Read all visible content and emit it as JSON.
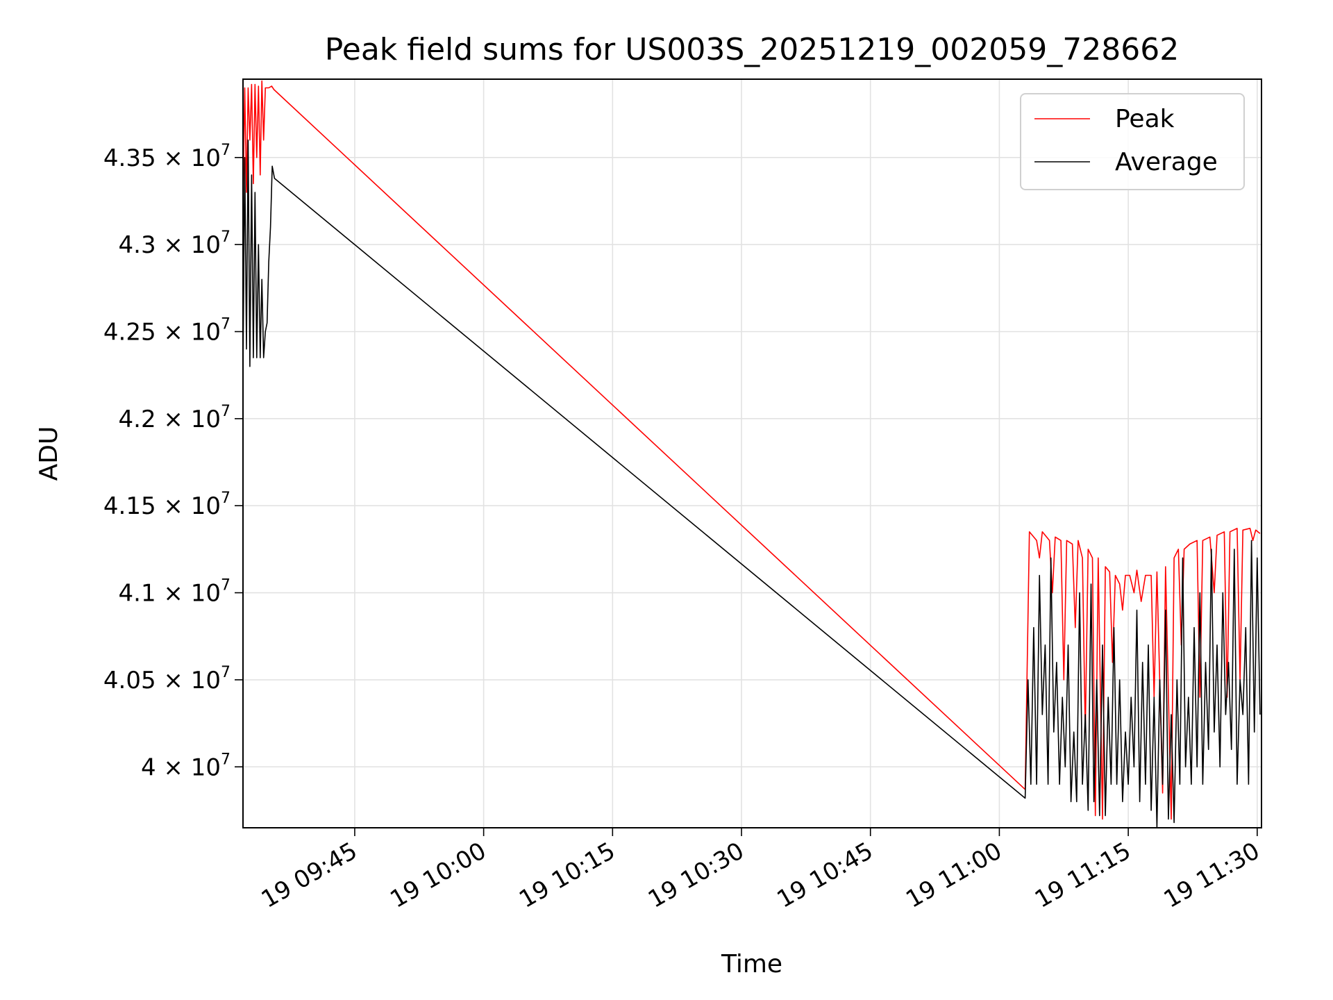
{
  "chart_data": {
    "type": "line",
    "title": "Peak field sums for US003S_20251219_002059_728662",
    "xlabel": "Time",
    "ylabel": "ADU",
    "xlim": [
      "2025-12-19T09:32:00",
      "2025-12-19T11:30:30"
    ],
    "ylim": [
      39650000,
      43950000
    ],
    "grid": true,
    "legend_position": "top-right",
    "x_ticks": [
      {
        "value": "2025-12-19T09:45:00",
        "label": "19 09:45"
      },
      {
        "value": "2025-12-19T10:00:00",
        "label": "19 10:00"
      },
      {
        "value": "2025-12-19T10:15:00",
        "label": "19 10:15"
      },
      {
        "value": "2025-12-19T10:30:00",
        "label": "19 10:30"
      },
      {
        "value": "2025-12-19T10:45:00",
        "label": "19 10:45"
      },
      {
        "value": "2025-12-19T11:00:00",
        "label": "19 11:00"
      },
      {
        "value": "2025-12-19T11:15:00",
        "label": "19 11:15"
      },
      {
        "value": "2025-12-19T11:30:00",
        "label": "19 11:30"
      }
    ],
    "y_ticks": [
      {
        "value": 40000000,
        "mantissa": "4",
        "exp": "7"
      },
      {
        "value": 40500000,
        "mantissa": "4.05",
        "exp": "7"
      },
      {
        "value": 41000000,
        "mantissa": "4.1",
        "exp": "7"
      },
      {
        "value": 41500000,
        "mantissa": "4.15",
        "exp": "7"
      },
      {
        "value": 42000000,
        "mantissa": "4.2",
        "exp": "7"
      },
      {
        "value": 42500000,
        "mantissa": "4.25",
        "exp": "7"
      },
      {
        "value": 43000000,
        "mantissa": "4.3",
        "exp": "7"
      },
      {
        "value": 43500000,
        "mantissa": "4.35",
        "exp": "7"
      }
    ],
    "series": [
      {
        "name": "Peak",
        "color": "#ff0000",
        "points": [
          [
            "2025-12-19T09:32:00",
            43250000
          ],
          [
            "2025-12-19T09:32:12",
            43900000
          ],
          [
            "2025-12-19T09:32:24",
            43300000
          ],
          [
            "2025-12-19T09:32:36",
            43900000
          ],
          [
            "2025-12-19T09:32:48",
            43600000
          ],
          [
            "2025-12-19T09:33:00",
            43920000
          ],
          [
            "2025-12-19T09:33:12",
            43350000
          ],
          [
            "2025-12-19T09:33:24",
            43920000
          ],
          [
            "2025-12-19T09:33:36",
            43500000
          ],
          [
            "2025-12-19T09:33:48",
            43910000
          ],
          [
            "2025-12-19T09:34:00",
            43400000
          ],
          [
            "2025-12-19T09:34:12",
            43940000
          ],
          [
            "2025-12-19T09:34:24",
            43600000
          ],
          [
            "2025-12-19T09:34:36",
            43900000
          ],
          [
            "2025-12-19T09:35:00",
            43900000
          ],
          [
            "2025-12-19T09:35:20",
            43910000
          ],
          [
            "2025-12-19T09:35:36",
            43890000
          ],
          [
            "2025-12-19T11:03:00",
            39870000
          ],
          [
            "2025-12-19T11:03:30",
            41350000
          ],
          [
            "2025-12-19T11:04:20",
            41300000
          ],
          [
            "2025-12-19T11:04:40",
            41200000
          ],
          [
            "2025-12-19T11:05:00",
            41350000
          ],
          [
            "2025-12-19T11:05:50",
            41300000
          ],
          [
            "2025-12-19T11:06:10",
            41000000
          ],
          [
            "2025-12-19T11:06:30",
            41320000
          ],
          [
            "2025-12-19T11:07:10",
            41300000
          ],
          [
            "2025-12-19T11:07:30",
            40500000
          ],
          [
            "2025-12-19T11:07:50",
            41300000
          ],
          [
            "2025-12-19T11:08:30",
            41280000
          ],
          [
            "2025-12-19T11:08:50",
            40800000
          ],
          [
            "2025-12-19T11:09:10",
            41300000
          ],
          [
            "2025-12-19T11:09:40",
            41200000
          ],
          [
            "2025-12-19T11:10:00",
            40200000
          ],
          [
            "2025-12-19T11:10:20",
            41250000
          ],
          [
            "2025-12-19T11:10:50",
            41200000
          ],
          [
            "2025-12-19T11:11:10",
            39720000
          ],
          [
            "2025-12-19T11:11:30",
            41200000
          ],
          [
            "2025-12-19T11:12:00",
            39700000
          ],
          [
            "2025-12-19T11:12:20",
            41150000
          ],
          [
            "2025-12-19T11:12:50",
            41120000
          ],
          [
            "2025-12-19T11:13:10",
            40600000
          ],
          [
            "2025-12-19T11:13:30",
            41100000
          ],
          [
            "2025-12-19T11:14:00",
            41050000
          ],
          [
            "2025-12-19T11:14:20",
            40900000
          ],
          [
            "2025-12-19T11:14:40",
            41100000
          ],
          [
            "2025-12-19T11:15:10",
            41100000
          ],
          [
            "2025-12-19T11:15:40",
            41000000
          ],
          [
            "2025-12-19T11:16:00",
            41130000
          ],
          [
            "2025-12-19T11:16:30",
            40950000
          ],
          [
            "2025-12-19T11:17:00",
            41100000
          ],
          [
            "2025-12-19T11:17:40",
            41100000
          ],
          [
            "2025-12-19T11:18:00",
            40400000
          ],
          [
            "2025-12-19T11:18:20",
            41120000
          ],
          [
            "2025-12-19T11:19:00",
            39850000
          ],
          [
            "2025-12-19T11:19:20",
            41150000
          ],
          [
            "2025-12-19T11:20:00",
            39700000
          ],
          [
            "2025-12-19T11:20:20",
            41200000
          ],
          [
            "2025-12-19T11:20:50",
            41250000
          ],
          [
            "2025-12-19T11:21:10",
            40700000
          ],
          [
            "2025-12-19T11:21:30",
            41250000
          ],
          [
            "2025-12-19T11:22:10",
            41280000
          ],
          [
            "2025-12-19T11:23:00",
            41300000
          ],
          [
            "2025-12-19T11:23:20",
            40400000
          ],
          [
            "2025-12-19T11:23:40",
            41300000
          ],
          [
            "2025-12-19T11:24:30",
            41320000
          ],
          [
            "2025-12-19T11:25:00",
            41000000
          ],
          [
            "2025-12-19T11:25:20",
            41330000
          ],
          [
            "2025-12-19T11:26:10",
            41350000
          ],
          [
            "2025-12-19T11:26:30",
            40400000
          ],
          [
            "2025-12-19T11:26:50",
            41350000
          ],
          [
            "2025-12-19T11:27:40",
            41370000
          ],
          [
            "2025-12-19T11:28:00",
            40500000
          ],
          [
            "2025-12-19T11:28:20",
            41360000
          ],
          [
            "2025-12-19T11:29:10",
            41370000
          ],
          [
            "2025-12-19T11:29:30",
            41300000
          ],
          [
            "2025-12-19T11:29:50",
            41360000
          ],
          [
            "2025-12-19T11:30:20",
            41340000
          ]
        ]
      },
      {
        "name": "Average",
        "color": "#000000",
        "points": [
          [
            "2025-12-19T09:32:00",
            42300000
          ],
          [
            "2025-12-19T09:32:12",
            43500000
          ],
          [
            "2025-12-19T09:32:24",
            42400000
          ],
          [
            "2025-12-19T09:32:36",
            43600000
          ],
          [
            "2025-12-19T09:32:48",
            42300000
          ],
          [
            "2025-12-19T09:33:00",
            43400000
          ],
          [
            "2025-12-19T09:33:12",
            42350000
          ],
          [
            "2025-12-19T09:33:24",
            43300000
          ],
          [
            "2025-12-19T09:33:36",
            42350000
          ],
          [
            "2025-12-19T09:33:48",
            43000000
          ],
          [
            "2025-12-19T09:34:00",
            42350000
          ],
          [
            "2025-12-19T09:34:12",
            42800000
          ],
          [
            "2025-12-19T09:34:24",
            42350000
          ],
          [
            "2025-12-19T09:34:36",
            42500000
          ],
          [
            "2025-12-19T09:34:48",
            42550000
          ],
          [
            "2025-12-19T09:35:00",
            42900000
          ],
          [
            "2025-12-19T09:35:12",
            43100000
          ],
          [
            "2025-12-19T09:35:24",
            43450000
          ],
          [
            "2025-12-19T09:35:40",
            43380000
          ],
          [
            "2025-12-19T11:03:00",
            39820000
          ],
          [
            "2025-12-19T11:03:20",
            40500000
          ],
          [
            "2025-12-19T11:03:40",
            39900000
          ],
          [
            "2025-12-19T11:04:00",
            40800000
          ],
          [
            "2025-12-19T11:04:20",
            39900000
          ],
          [
            "2025-12-19T11:04:40",
            41100000
          ],
          [
            "2025-12-19T11:05:00",
            40300000
          ],
          [
            "2025-12-19T11:05:20",
            40700000
          ],
          [
            "2025-12-19T11:05:40",
            39900000
          ],
          [
            "2025-12-19T11:06:00",
            41200000
          ],
          [
            "2025-12-19T11:06:20",
            40200000
          ],
          [
            "2025-12-19T11:06:40",
            40600000
          ],
          [
            "2025-12-19T11:07:00",
            39900000
          ],
          [
            "2025-12-19T11:07:20",
            40400000
          ],
          [
            "2025-12-19T11:07:40",
            40000000
          ],
          [
            "2025-12-19T11:08:00",
            40700000
          ],
          [
            "2025-12-19T11:08:20",
            39800000
          ],
          [
            "2025-12-19T11:08:40",
            40200000
          ],
          [
            "2025-12-19T11:09:00",
            39800000
          ],
          [
            "2025-12-19T11:09:20",
            41000000
          ],
          [
            "2025-12-19T11:09:40",
            39900000
          ],
          [
            "2025-12-19T11:10:00",
            40300000
          ],
          [
            "2025-12-19T11:10:20",
            39750000
          ],
          [
            "2025-12-19T11:10:40",
            41050000
          ],
          [
            "2025-12-19T11:11:00",
            39800000
          ],
          [
            "2025-12-19T11:11:20",
            40500000
          ],
          [
            "2025-12-19T11:11:40",
            39720000
          ],
          [
            "2025-12-19T11:12:00",
            40700000
          ],
          [
            "2025-12-19T11:12:20",
            39720000
          ],
          [
            "2025-12-19T11:12:40",
            40400000
          ],
          [
            "2025-12-19T11:13:00",
            39900000
          ],
          [
            "2025-12-19T11:13:20",
            40800000
          ],
          [
            "2025-12-19T11:13:40",
            39900000
          ],
          [
            "2025-12-19T11:14:00",
            40500000
          ],
          [
            "2025-12-19T11:14:20",
            39800000
          ],
          [
            "2025-12-19T11:14:40",
            40200000
          ],
          [
            "2025-12-19T11:15:00",
            39900000
          ],
          [
            "2025-12-19T11:15:20",
            40400000
          ],
          [
            "2025-12-19T11:15:40",
            40000000
          ],
          [
            "2025-12-19T11:16:00",
            40900000
          ],
          [
            "2025-12-19T11:16:20",
            39800000
          ],
          [
            "2025-12-19T11:16:40",
            40600000
          ],
          [
            "2025-12-19T11:17:00",
            39900000
          ],
          [
            "2025-12-19T11:17:20",
            40700000
          ],
          [
            "2025-12-19T11:17:40",
            39750000
          ],
          [
            "2025-12-19T11:18:00",
            40400000
          ],
          [
            "2025-12-19T11:18:20",
            39650000
          ],
          [
            "2025-12-19T11:18:40",
            40500000
          ],
          [
            "2025-12-19T11:19:00",
            39900000
          ],
          [
            "2025-12-19T11:19:20",
            40900000
          ],
          [
            "2025-12-19T11:19:40",
            39700000
          ],
          [
            "2025-12-19T11:20:00",
            40300000
          ],
          [
            "2025-12-19T11:20:20",
            39680000
          ],
          [
            "2025-12-19T11:20:40",
            40500000
          ],
          [
            "2025-12-19T11:21:00",
            39900000
          ],
          [
            "2025-12-19T11:21:20",
            41200000
          ],
          [
            "2025-12-19T11:21:40",
            40000000
          ],
          [
            "2025-12-19T11:22:00",
            40400000
          ],
          [
            "2025-12-19T11:22:20",
            39900000
          ],
          [
            "2025-12-19T11:22:40",
            40800000
          ],
          [
            "2025-12-19T11:23:00",
            40000000
          ],
          [
            "2025-12-19T11:23:20",
            41000000
          ],
          [
            "2025-12-19T11:23:40",
            39900000
          ],
          [
            "2025-12-19T11:24:00",
            40600000
          ],
          [
            "2025-12-19T11:24:20",
            40100000
          ],
          [
            "2025-12-19T11:24:40",
            41250000
          ],
          [
            "2025-12-19T11:25:00",
            40200000
          ],
          [
            "2025-12-19T11:25:20",
            40700000
          ],
          [
            "2025-12-19T11:25:40",
            40000000
          ],
          [
            "2025-12-19T11:26:00",
            41000000
          ],
          [
            "2025-12-19T11:26:20",
            40300000
          ],
          [
            "2025-12-19T11:26:40",
            40600000
          ],
          [
            "2025-12-19T11:27:00",
            40100000
          ],
          [
            "2025-12-19T11:27:20",
            41250000
          ],
          [
            "2025-12-19T11:27:40",
            39900000
          ],
          [
            "2025-12-19T11:28:00",
            40500000
          ],
          [
            "2025-12-19T11:28:20",
            40300000
          ],
          [
            "2025-12-19T11:28:40",
            40800000
          ],
          [
            "2025-12-19T11:29:00",
            39900000
          ],
          [
            "2025-12-19T11:29:20",
            41300000
          ],
          [
            "2025-12-19T11:29:40",
            40200000
          ],
          [
            "2025-12-19T11:30:00",
            41200000
          ],
          [
            "2025-12-19T11:30:20",
            40300000
          ]
        ]
      }
    ]
  }
}
